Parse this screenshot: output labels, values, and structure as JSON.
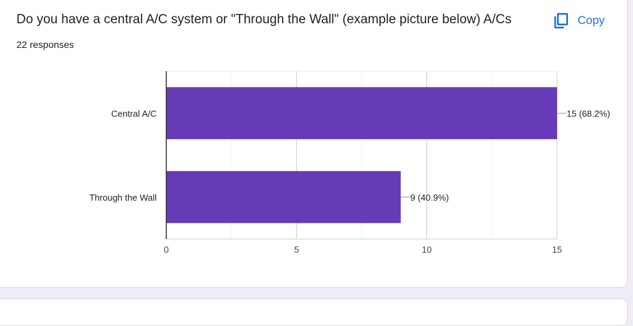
{
  "question": {
    "title": "Do you have a central A/C system or \"Through the Wall\" (example picture below) A/Cs",
    "responses": "22 responses"
  },
  "copy_button": {
    "label": "Copy",
    "icon": "copy-icon"
  },
  "colors": {
    "bar": "#673ab7",
    "accent": "#1a73e8",
    "background": "#f0ebf8"
  },
  "chart_data": {
    "type": "bar",
    "orientation": "horizontal",
    "categories": [
      "Central A/C",
      "Through the Wall"
    ],
    "values": [
      15,
      9
    ],
    "data_labels": [
      "15 (68.2%)",
      "9 (40.9%)"
    ],
    "xlim": [
      0,
      15
    ],
    "xticks": [
      0,
      5,
      10,
      15
    ],
    "grid": true,
    "legend": "none"
  }
}
